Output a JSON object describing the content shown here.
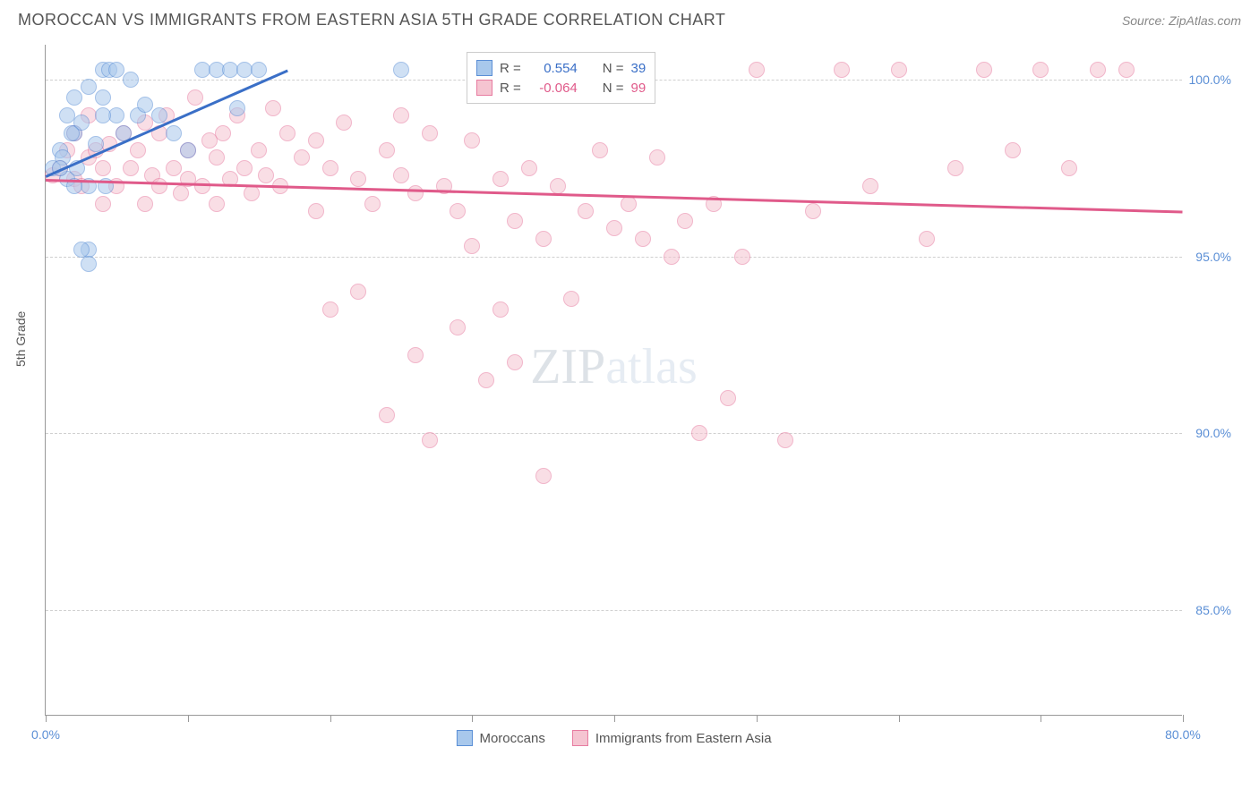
{
  "header": {
    "title": "MOROCCAN VS IMMIGRANTS FROM EASTERN ASIA 5TH GRADE CORRELATION CHART",
    "source": "Source: ZipAtlas.com"
  },
  "ylabel": "5th Grade",
  "watermark": {
    "part1": "ZIP",
    "part2": "atlas"
  },
  "chart": {
    "type": "scatter",
    "xlim": [
      0,
      80
    ],
    "ylim": [
      82,
      101
    ],
    "xtick_positions": [
      0,
      10,
      20,
      30,
      40,
      50,
      60,
      70,
      80
    ],
    "xtick_labels": {
      "0": "0.0%",
      "80": "80.0%"
    },
    "ytick_positions": [
      85,
      90,
      95,
      100
    ],
    "ytick_labels": [
      "85.0%",
      "90.0%",
      "95.0%",
      "100.0%"
    ],
    "grid_color": "#d0d0d0",
    "background_color": "#ffffff",
    "point_radius": 9,
    "point_opacity": 0.55,
    "series": [
      {
        "name": "Moroccans",
        "color_fill": "#a8c8ec",
        "color_stroke": "#5b8fd6",
        "R": "0.554",
        "N": "39",
        "trend": {
          "x1": 0,
          "y1": 97.3,
          "x2": 17,
          "y2": 100.3,
          "color": "#3a6fc7"
        },
        "points": [
          [
            0.5,
            97.5
          ],
          [
            1,
            98
          ],
          [
            1.2,
            97.8
          ],
          [
            1.5,
            97.2
          ],
          [
            1.5,
            99
          ],
          [
            2,
            98.5
          ],
          [
            2,
            99.5
          ],
          [
            2.2,
            97.5
          ],
          [
            2.5,
            98.8
          ],
          [
            3,
            99.8
          ],
          [
            3,
            97
          ],
          [
            3,
            95.2
          ],
          [
            3.5,
            98.2
          ],
          [
            4,
            100.3
          ],
          [
            4,
            99.5
          ],
          [
            4.2,
            97
          ],
          [
            4.5,
            100.3
          ],
          [
            5,
            100.3
          ],
          [
            5,
            99
          ],
          [
            5.5,
            98.5
          ],
          [
            6,
            100
          ],
          [
            6.5,
            99
          ],
          [
            7,
            99.3
          ],
          [
            8,
            99
          ],
          [
            9,
            98.5
          ],
          [
            10,
            98
          ],
          [
            11,
            100.3
          ],
          [
            12,
            100.3
          ],
          [
            13,
            100.3
          ],
          [
            13.5,
            99.2
          ],
          [
            14,
            100.3
          ],
          [
            15,
            100.3
          ],
          [
            2.5,
            95.2
          ],
          [
            3,
            94.8
          ],
          [
            4,
            99
          ],
          [
            1,
            97.5
          ],
          [
            2,
            97
          ],
          [
            1.8,
            98.5
          ],
          [
            25,
            100.3
          ]
        ]
      },
      {
        "name": "Immigrants from Eastern Asia",
        "color_fill": "#f5c4d1",
        "color_stroke": "#e77ba0",
        "R": "-0.064",
        "N": "99",
        "trend": {
          "x1": 0,
          "y1": 97.2,
          "x2": 80,
          "y2": 96.3,
          "color": "#e05a8a"
        },
        "points": [
          [
            0.5,
            97.3
          ],
          [
            1,
            97.5
          ],
          [
            1.5,
            98
          ],
          [
            2,
            97.2
          ],
          [
            2,
            98.5
          ],
          [
            2.5,
            97
          ],
          [
            3,
            97.8
          ],
          [
            3,
            99
          ],
          [
            3.5,
            98
          ],
          [
            4,
            97.5
          ],
          [
            4,
            96.5
          ],
          [
            4.5,
            98.2
          ],
          [
            5,
            97
          ],
          [
            5.5,
            98.5
          ],
          [
            6,
            97.5
          ],
          [
            6.5,
            98
          ],
          [
            7,
            96.5
          ],
          [
            7,
            98.8
          ],
          [
            7.5,
            97.3
          ],
          [
            8,
            98.5
          ],
          [
            8,
            97
          ],
          [
            8.5,
            99
          ],
          [
            9,
            97.5
          ],
          [
            9.5,
            96.8
          ],
          [
            10,
            98
          ],
          [
            10,
            97.2
          ],
          [
            10.5,
            99.5
          ],
          [
            11,
            97
          ],
          [
            11.5,
            98.3
          ],
          [
            12,
            96.5
          ],
          [
            12,
            97.8
          ],
          [
            12.5,
            98.5
          ],
          [
            13,
            97.2
          ],
          [
            13.5,
            99
          ],
          [
            14,
            97.5
          ],
          [
            14.5,
            96.8
          ],
          [
            15,
            98
          ],
          [
            15.5,
            97.3
          ],
          [
            16,
            99.2
          ],
          [
            16.5,
            97
          ],
          [
            17,
            98.5
          ],
          [
            18,
            97.8
          ],
          [
            19,
            96.3
          ],
          [
            19,
            98.3
          ],
          [
            20,
            93.5
          ],
          [
            20,
            97.5
          ],
          [
            21,
            98.8
          ],
          [
            22,
            97.2
          ],
          [
            22,
            94
          ],
          [
            23,
            96.5
          ],
          [
            24,
            98
          ],
          [
            24,
            90.5
          ],
          [
            25,
            99
          ],
          [
            25,
            97.3
          ],
          [
            26,
            92.2
          ],
          [
            26,
            96.8
          ],
          [
            27,
            98.5
          ],
          [
            27,
            89.8
          ],
          [
            28,
            97
          ],
          [
            29,
            93
          ],
          [
            29,
            96.3
          ],
          [
            30,
            95.3
          ],
          [
            30,
            98.3
          ],
          [
            31,
            91.5
          ],
          [
            32,
            97.2
          ],
          [
            32,
            93.5
          ],
          [
            33,
            96
          ],
          [
            33,
            92
          ],
          [
            34,
            97.5
          ],
          [
            35,
            88.8
          ],
          [
            35,
            95.5
          ],
          [
            36,
            97
          ],
          [
            37,
            93.8
          ],
          [
            37,
            100.3
          ],
          [
            38,
            96.3
          ],
          [
            39,
            98
          ],
          [
            40,
            95.8
          ],
          [
            41,
            96.5
          ],
          [
            42,
            95.5
          ],
          [
            43,
            97.8
          ],
          [
            44,
            95
          ],
          [
            45,
            96
          ],
          [
            46,
            90
          ],
          [
            47,
            96.5
          ],
          [
            48,
            91
          ],
          [
            49,
            95
          ],
          [
            50,
            100.3
          ],
          [
            52,
            89.8
          ],
          [
            54,
            96.3
          ],
          [
            56,
            100.3
          ],
          [
            58,
            97
          ],
          [
            60,
            100.3
          ],
          [
            62,
            95.5
          ],
          [
            64,
            97.5
          ],
          [
            66,
            100.3
          ],
          [
            68,
            98
          ],
          [
            70,
            100.3
          ],
          [
            72,
            97.5
          ],
          [
            74,
            100.3
          ],
          [
            76,
            100.3
          ]
        ]
      }
    ]
  },
  "legend_box": {
    "R_label": "R =",
    "N_label": "N ="
  },
  "bottom_legend": {
    "label1": "Moroccans",
    "label2": "Immigrants from Eastern Asia"
  }
}
